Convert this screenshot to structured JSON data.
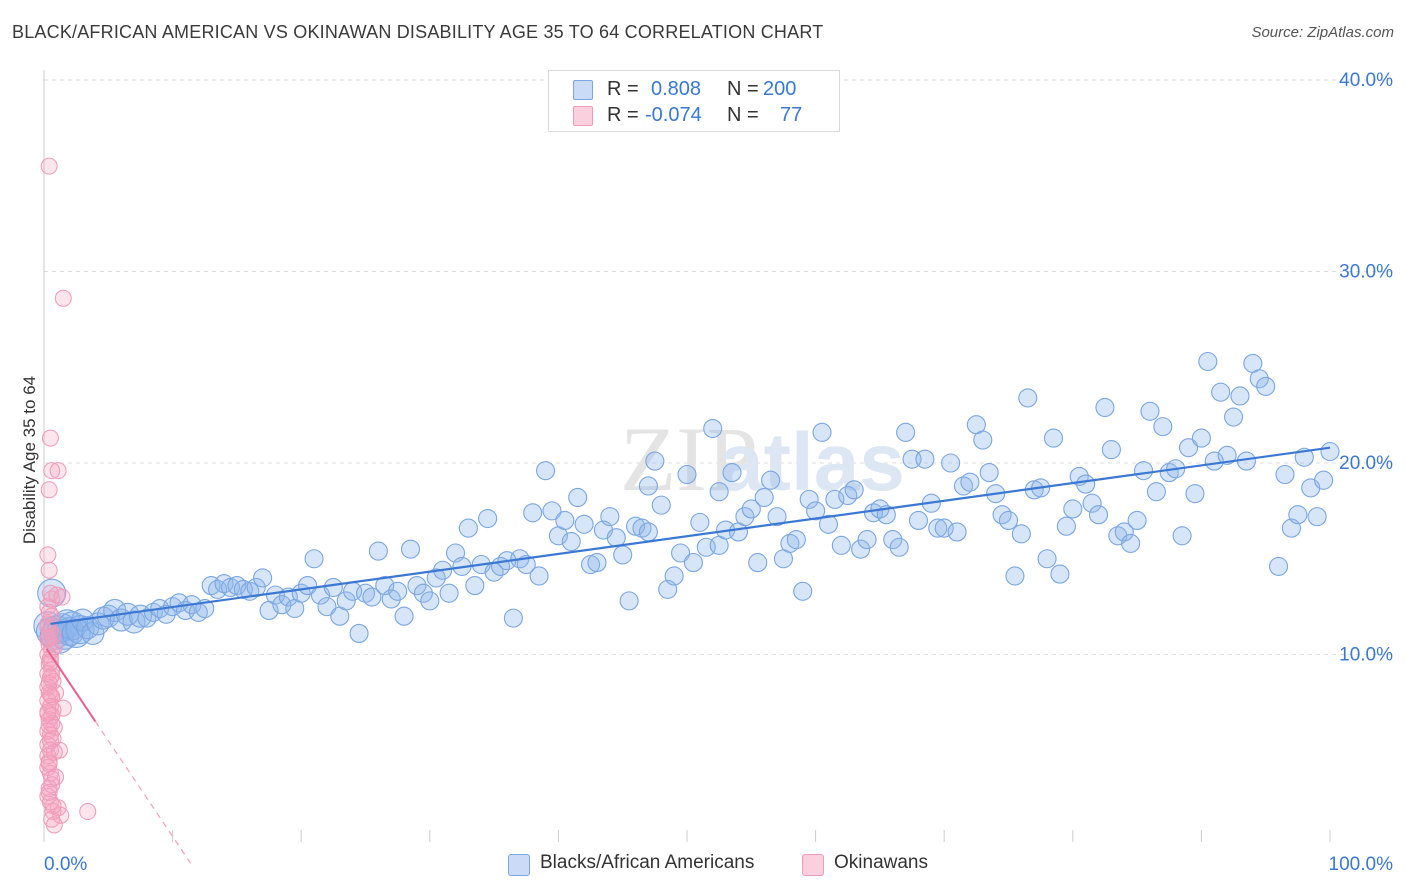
{
  "header": {
    "title": "BLACK/AFRICAN AMERICAN VS OKINAWAN DISABILITY AGE 35 TO 64 CORRELATION CHART",
    "source": "Source: ZipAtlas.com"
  },
  "watermark": {
    "part1": "ZIP",
    "part2": "atlas"
  },
  "legend": {
    "row1": {
      "r_label": "R =",
      "r_value": "0.808",
      "n_label": "N =",
      "n_value": "200"
    },
    "row2": {
      "r_label": "R =",
      "r_value": "-0.074",
      "n_label": "N =",
      "n_value": "77"
    }
  },
  "bottom_legend": {
    "series1": "Blacks/African Americans",
    "series2": "Okinawans"
  },
  "colors": {
    "blue": "#6f9fe0",
    "blue_line": "#3a78d4",
    "blue_text": "#3a78d4",
    "pink": "#f08fb0",
    "pink_line": "#e8608a",
    "grid": "#dcdcdc",
    "axis_text": "#3a78d4"
  },
  "chart_data": {
    "type": "scatter",
    "title": "BLACK/AFRICAN AMERICAN VS OKINAWAN DISABILITY AGE 35 TO 64 CORRELATION CHART",
    "xlabel": "",
    "ylabel": "Disability Age 35 to 64",
    "xlim": [
      0,
      100
    ],
    "ylim": [
      0,
      40
    ],
    "x_ticks": [
      "0.0%",
      "100.0%"
    ],
    "y_ticks": [
      "10.0%",
      "20.0%",
      "30.0%",
      "40.0%"
    ],
    "y_tick_values": [
      10,
      20,
      30,
      40
    ],
    "series": [
      {
        "name": "Blacks/African Americans",
        "R": 0.808,
        "N": 200,
        "trendline": {
          "x": [
            0.5,
            100
          ],
          "y": [
            11.6,
            20.8
          ]
        },
        "points": [
          [
            0.3,
            11.5
          ],
          [
            0.5,
            11.2
          ],
          [
            0.6,
            13.2
          ],
          [
            0.8,
            11.0
          ],
          [
            1.0,
            11.3
          ],
          [
            1.2,
            10.8
          ],
          [
            1.4,
            11.4
          ],
          [
            1.6,
            11.0
          ],
          [
            1.8,
            11.6
          ],
          [
            2.0,
            11.2
          ],
          [
            2.2,
            11.5
          ],
          [
            2.5,
            11.1
          ],
          [
            2.8,
            11.3
          ],
          [
            3.0,
            11.8
          ],
          [
            3.4,
            11.4
          ],
          [
            3.8,
            11.1
          ],
          [
            4.2,
            11.6
          ],
          [
            4.6,
            11.9
          ],
          [
            5.0,
            12.0
          ],
          [
            5.5,
            12.3
          ],
          [
            6.0,
            11.8
          ],
          [
            6.5,
            12.1
          ],
          [
            7.0,
            11.7
          ],
          [
            7.5,
            12.0
          ],
          [
            8.0,
            11.9
          ],
          [
            8.5,
            12.2
          ],
          [
            9.0,
            12.4
          ],
          [
            9.5,
            12.1
          ],
          [
            10.0,
            12.5
          ],
          [
            10.5,
            12.7
          ],
          [
            11.0,
            12.3
          ],
          [
            11.5,
            12.6
          ],
          [
            12.0,
            12.2
          ],
          [
            12.5,
            12.4
          ],
          [
            13.0,
            13.6
          ],
          [
            13.5,
            13.4
          ],
          [
            14.0,
            13.7
          ],
          [
            14.5,
            13.5
          ],
          [
            15.0,
            13.6
          ],
          [
            15.5,
            13.4
          ],
          [
            16.0,
            13.3
          ],
          [
            16.5,
            13.5
          ],
          [
            17.0,
            14.0
          ],
          [
            17.5,
            12.3
          ],
          [
            18.0,
            13.1
          ],
          [
            18.5,
            12.6
          ],
          [
            19.0,
            13.0
          ],
          [
            19.5,
            12.4
          ],
          [
            20.0,
            13.2
          ],
          [
            20.5,
            13.6
          ],
          [
            21.0,
            15.0
          ],
          [
            21.5,
            13.1
          ],
          [
            22.0,
            12.5
          ],
          [
            22.5,
            13.5
          ],
          [
            23.0,
            12.0
          ],
          [
            23.5,
            12.8
          ],
          [
            24.0,
            13.3
          ],
          [
            24.5,
            11.1
          ],
          [
            25.0,
            13.2
          ],
          [
            25.5,
            13.0
          ],
          [
            26.0,
            15.4
          ],
          [
            26.5,
            13.6
          ],
          [
            27.0,
            12.9
          ],
          [
            27.5,
            13.3
          ],
          [
            28.0,
            12.0
          ],
          [
            28.5,
            15.5
          ],
          [
            29.0,
            13.6
          ],
          [
            29.5,
            13.2
          ],
          [
            30.0,
            12.8
          ],
          [
            30.5,
            14.0
          ],
          [
            31.0,
            14.4
          ],
          [
            31.5,
            13.2
          ],
          [
            32.0,
            15.3
          ],
          [
            32.5,
            14.6
          ],
          [
            33.0,
            16.6
          ],
          [
            33.5,
            13.6
          ],
          [
            34.0,
            14.7
          ],
          [
            34.5,
            17.1
          ],
          [
            35.0,
            14.3
          ],
          [
            35.5,
            14.6
          ],
          [
            36.0,
            14.9
          ],
          [
            36.5,
            11.9
          ],
          [
            37.0,
            15.0
          ],
          [
            37.5,
            14.7
          ],
          [
            38.0,
            17.4
          ],
          [
            38.5,
            14.1
          ],
          [
            39.0,
            19.6
          ],
          [
            39.5,
            17.5
          ],
          [
            40.0,
            16.2
          ],
          [
            40.5,
            17.0
          ],
          [
            41.0,
            15.9
          ],
          [
            41.5,
            18.2
          ],
          [
            42.0,
            16.8
          ],
          [
            42.5,
            14.7
          ],
          [
            43.0,
            14.8
          ],
          [
            43.5,
            16.5
          ],
          [
            44.0,
            17.2
          ],
          [
            44.5,
            16.1
          ],
          [
            45.0,
            15.2
          ],
          [
            45.5,
            12.8
          ],
          [
            46.0,
            16.7
          ],
          [
            46.5,
            16.6
          ],
          [
            47.0,
            18.8
          ],
          [
            47.5,
            20.1
          ],
          [
            48.0,
            17.8
          ],
          [
            48.5,
            13.4
          ],
          [
            49.0,
            14.1
          ],
          [
            49.5,
            15.3
          ],
          [
            50.0,
            19.4
          ],
          [
            50.5,
            14.8
          ],
          [
            51.0,
            16.9
          ],
          [
            51.5,
            15.6
          ],
          [
            52.0,
            21.8
          ],
          [
            52.5,
            15.7
          ],
          [
            53.0,
            16.5
          ],
          [
            53.5,
            19.5
          ],
          [
            54.0,
            16.4
          ],
          [
            54.5,
            17.2
          ],
          [
            55.0,
            17.6
          ],
          [
            55.5,
            14.8
          ],
          [
            56.0,
            18.2
          ],
          [
            56.5,
            19.1
          ],
          [
            57.0,
            17.2
          ],
          [
            57.5,
            15.0
          ],
          [
            58.0,
            15.8
          ],
          [
            58.5,
            16.0
          ],
          [
            59.0,
            13.3
          ],
          [
            59.5,
            18.1
          ],
          [
            60.0,
            17.5
          ],
          [
            60.5,
            21.6
          ],
          [
            61.0,
            16.8
          ],
          [
            61.5,
            18.1
          ],
          [
            62.0,
            15.7
          ],
          [
            62.5,
            18.3
          ],
          [
            63.0,
            18.6
          ],
          [
            63.5,
            15.5
          ],
          [
            64.0,
            16.0
          ],
          [
            64.5,
            17.4
          ],
          [
            65.0,
            17.6
          ],
          [
            65.5,
            17.3
          ],
          [
            66.0,
            16.0
          ],
          [
            66.5,
            15.6
          ],
          [
            67.0,
            21.6
          ],
          [
            67.5,
            20.2
          ],
          [
            68.0,
            17.0
          ],
          [
            68.5,
            20.2
          ],
          [
            69.0,
            17.9
          ],
          [
            69.5,
            16.6
          ],
          [
            70.0,
            16.6
          ],
          [
            70.5,
            20.0
          ],
          [
            71.0,
            16.4
          ],
          [
            71.5,
            18.8
          ],
          [
            72.0,
            19.0
          ],
          [
            72.5,
            22.0
          ],
          [
            73.0,
            21.2
          ],
          [
            73.5,
            19.5
          ],
          [
            74.0,
            18.4
          ],
          [
            74.5,
            17.3
          ],
          [
            75.0,
            17.0
          ],
          [
            75.5,
            14.1
          ],
          [
            76.0,
            16.3
          ],
          [
            76.5,
            23.4
          ],
          [
            77.0,
            18.6
          ],
          [
            77.5,
            18.7
          ],
          [
            78.0,
            15.0
          ],
          [
            78.5,
            21.3
          ],
          [
            79.0,
            14.2
          ],
          [
            79.5,
            16.7
          ],
          [
            80.0,
            17.6
          ],
          [
            80.5,
            19.3
          ],
          [
            81.0,
            18.9
          ],
          [
            81.5,
            17.9
          ],
          [
            82.0,
            17.3
          ],
          [
            82.5,
            22.9
          ],
          [
            83.0,
            20.7
          ],
          [
            83.5,
            16.2
          ],
          [
            84.0,
            16.4
          ],
          [
            84.5,
            15.8
          ],
          [
            85.0,
            17.0
          ],
          [
            85.5,
            19.6
          ],
          [
            86.0,
            22.7
          ],
          [
            86.5,
            18.5
          ],
          [
            87.0,
            21.9
          ],
          [
            87.5,
            19.5
          ],
          [
            88.0,
            19.7
          ],
          [
            88.5,
            16.2
          ],
          [
            89.0,
            20.8
          ],
          [
            89.5,
            18.4
          ],
          [
            90.0,
            21.3
          ],
          [
            90.5,
            25.3
          ],
          [
            91.0,
            20.1
          ],
          [
            91.5,
            23.7
          ],
          [
            92.0,
            20.4
          ],
          [
            92.5,
            22.4
          ],
          [
            93.0,
            23.5
          ],
          [
            93.5,
            20.1
          ],
          [
            94.0,
            25.2
          ],
          [
            94.5,
            24.4
          ],
          [
            95.0,
            24.0
          ],
          [
            96.0,
            14.6
          ],
          [
            96.5,
            19.4
          ],
          [
            97.0,
            16.6
          ],
          [
            97.5,
            17.3
          ],
          [
            98.0,
            20.3
          ],
          [
            98.5,
            18.7
          ],
          [
            99.0,
            17.2
          ],
          [
            99.5,
            19.1
          ],
          [
            100.0,
            20.6
          ],
          [
            47.0,
            16.4
          ],
          [
            52.5,
            18.5
          ]
        ]
      },
      {
        "name": "Okinawans",
        "R": -0.074,
        "N": 77,
        "trendline_solid": {
          "x": [
            0.2,
            4.0
          ],
          "y": [
            10.3,
            6.5
          ]
        },
        "trendline_dashed": {
          "x": [
            4.0,
            11.4
          ],
          "y": [
            6.5,
            -0.9
          ]
        },
        "points": [
          [
            0.4,
            35.5
          ],
          [
            1.5,
            28.6
          ],
          [
            0.5,
            21.3
          ],
          [
            0.6,
            19.6
          ],
          [
            1.1,
            19.6
          ],
          [
            0.4,
            18.6
          ],
          [
            0.3,
            15.2
          ],
          [
            0.4,
            14.4
          ],
          [
            0.5,
            13.2
          ],
          [
            0.6,
            12.9
          ],
          [
            1.0,
            13.1
          ],
          [
            1.4,
            13.0
          ],
          [
            0.3,
            12.5
          ],
          [
            0.4,
            12.2
          ],
          [
            0.6,
            12.0
          ],
          [
            0.3,
            11.6
          ],
          [
            0.5,
            11.3
          ],
          [
            0.7,
            11.0
          ],
          [
            0.3,
            10.8
          ],
          [
            0.4,
            10.5
          ],
          [
            0.6,
            10.2
          ],
          [
            0.8,
            10.4
          ],
          [
            0.3,
            10.0
          ],
          [
            0.5,
            9.8
          ],
          [
            0.4,
            9.5
          ],
          [
            0.6,
            9.2
          ],
          [
            0.3,
            9.0
          ],
          [
            0.5,
            8.8
          ],
          [
            0.7,
            8.6
          ],
          [
            0.3,
            8.3
          ],
          [
            0.4,
            8.0
          ],
          [
            0.6,
            7.8
          ],
          [
            0.9,
            8.0
          ],
          [
            0.3,
            7.6
          ],
          [
            0.5,
            7.3
          ],
          [
            0.7,
            7.1
          ],
          [
            1.5,
            7.2
          ],
          [
            0.3,
            6.9
          ],
          [
            0.4,
            6.6
          ],
          [
            0.6,
            6.4
          ],
          [
            0.8,
            6.2
          ],
          [
            0.3,
            6.0
          ],
          [
            0.5,
            5.8
          ],
          [
            0.7,
            5.6
          ],
          [
            0.3,
            5.3
          ],
          [
            0.5,
            5.0
          ],
          [
            1.2,
            5.0
          ],
          [
            0.3,
            4.7
          ],
          [
            0.4,
            4.4
          ],
          [
            0.3,
            4.1
          ],
          [
            0.5,
            3.8
          ],
          [
            0.9,
            3.6
          ],
          [
            0.6,
            3.2
          ],
          [
            0.4,
            3.0
          ],
          [
            0.3,
            2.6
          ],
          [
            0.5,
            2.3
          ],
          [
            1.1,
            2.0
          ],
          [
            0.7,
            1.8
          ],
          [
            1.3,
            1.6
          ],
          [
            3.4,
            1.8
          ],
          [
            0.6,
            1.4
          ],
          [
            0.8,
            1.1
          ],
          [
            0.3,
            11.4
          ],
          [
            0.4,
            10.9
          ],
          [
            0.5,
            9.6
          ],
          [
            0.6,
            8.9
          ],
          [
            0.4,
            8.5
          ],
          [
            0.5,
            7.9
          ],
          [
            0.3,
            7.0
          ],
          [
            0.6,
            6.8
          ],
          [
            0.4,
            6.3
          ],
          [
            0.5,
            5.5
          ],
          [
            0.8,
            4.9
          ],
          [
            0.4,
            4.3
          ],
          [
            0.6,
            3.5
          ],
          [
            0.4,
            2.8
          ],
          [
            0.7,
            2.1
          ]
        ]
      }
    ]
  }
}
